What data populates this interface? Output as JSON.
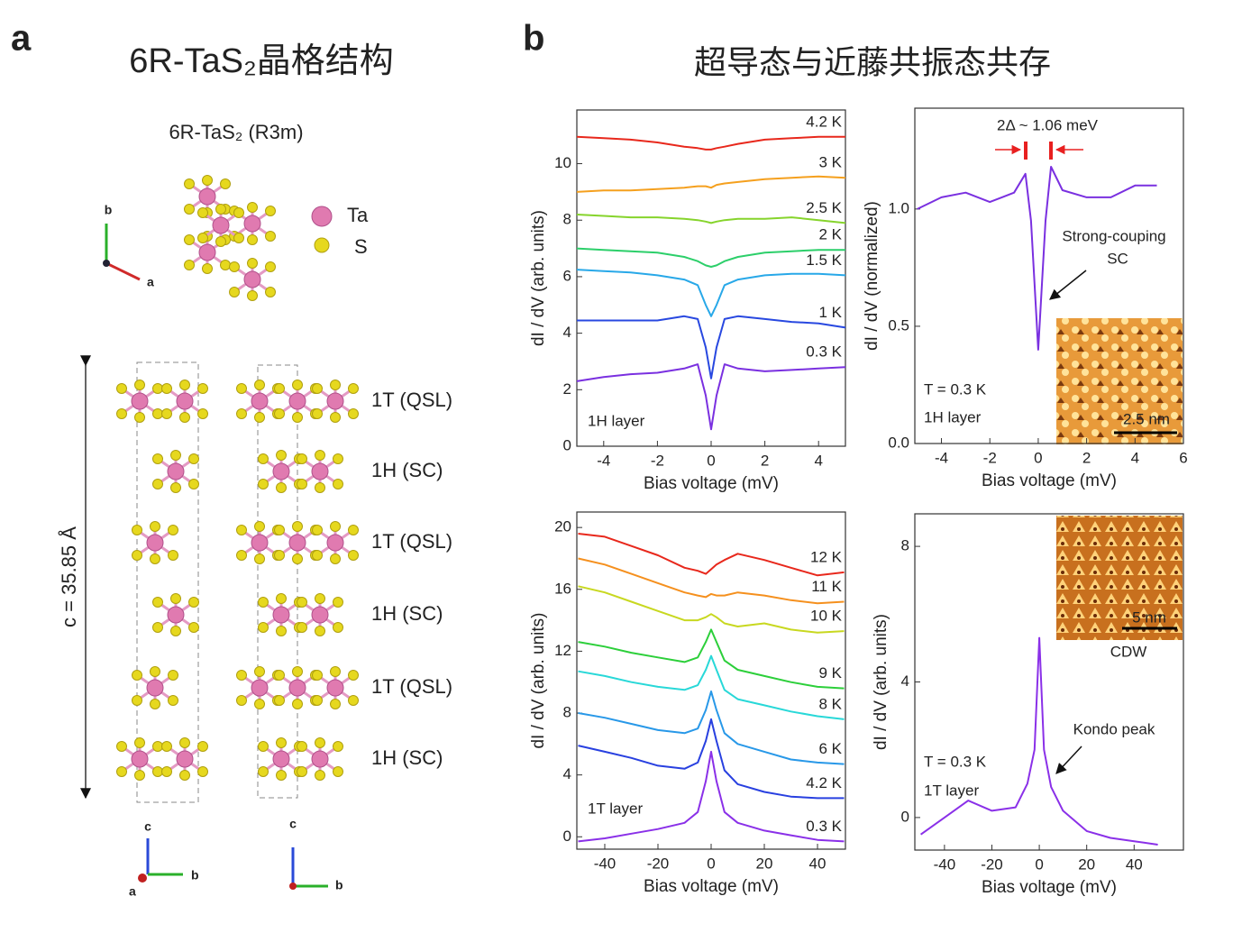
{
  "panel_a": {
    "label": "a",
    "title": "6R-TaS₂晶格结构",
    "structure": "6R-TaS₂ (R3m)",
    "legend": [
      "Ta",
      "S"
    ],
    "top_axes": [
      "b",
      "a"
    ],
    "layers": [
      "1T (QSL)",
      "1H (SC)",
      "1T (QSL)",
      "1H (SC)",
      "1T (QSL)",
      "1H (SC)"
    ],
    "lattice_c": "c = 35.85 Å",
    "side_axes_left": [
      "c",
      "a",
      "b"
    ],
    "side_axes_right": [
      "c",
      "b"
    ]
  },
  "panel_b": {
    "label": "b",
    "title": "超导态与近藤共振态共存"
  },
  "chart_data": [
    {
      "type": "line",
      "xlabel": "Bias voltage (mV)",
      "ylabel": "dI / dV (arb. units)",
      "x": [
        -5,
        -4,
        -3,
        -2,
        -1,
        -0.5,
        -0.2,
        0,
        0.2,
        0.5,
        1,
        2,
        3,
        4,
        5
      ],
      "xlim": [
        -5,
        5
      ],
      "xticks": [
        -4,
        -2,
        0,
        2,
        4
      ],
      "ylim": [
        0,
        11.9
      ],
      "yticks": [
        0,
        2,
        4,
        6,
        8,
        10
      ],
      "series": [
        {
          "name": "4.2 K",
          "color": "#e8281c",
          "values": [
            10.95,
            10.9,
            10.85,
            10.75,
            10.6,
            10.55,
            10.5,
            10.5,
            10.55,
            10.6,
            10.7,
            10.85,
            10.9,
            10.95,
            10.95
          ]
        },
        {
          "name": "3 K",
          "color": "#f5a01e",
          "values": [
            9.0,
            9.05,
            9.05,
            9.1,
            9.15,
            9.2,
            9.2,
            9.15,
            9.25,
            9.3,
            9.35,
            9.45,
            9.5,
            9.55,
            9.5
          ]
        },
        {
          "name": "2.5 K",
          "color": "#86d42c",
          "values": [
            8.2,
            8.15,
            8.1,
            8.1,
            8.05,
            8.0,
            7.95,
            7.9,
            7.95,
            8.0,
            8.05,
            8.05,
            8.1,
            8.0,
            7.9
          ]
        },
        {
          "name": "2 K",
          "color": "#2ccf6a",
          "values": [
            7.0,
            6.95,
            6.9,
            6.85,
            6.7,
            6.55,
            6.4,
            6.35,
            6.4,
            6.55,
            6.7,
            6.85,
            6.9,
            6.95,
            6.95
          ]
        },
        {
          "name": "1.5 K",
          "color": "#28a8e8",
          "values": [
            6.25,
            6.2,
            6.15,
            6.05,
            5.9,
            5.7,
            5.0,
            4.6,
            5.0,
            5.7,
            5.9,
            6.05,
            6.1,
            6.1,
            6.05
          ]
        },
        {
          "name": "1 K",
          "color": "#2848e0",
          "values": [
            4.45,
            4.45,
            4.45,
            4.45,
            4.6,
            4.5,
            3.5,
            2.4,
            3.5,
            4.5,
            4.6,
            4.5,
            4.4,
            4.35,
            4.2
          ]
        },
        {
          "name": "0.3 K",
          "color": "#7a30e0",
          "values": [
            2.3,
            2.45,
            2.55,
            2.6,
            2.75,
            2.9,
            1.8,
            0.6,
            1.8,
            2.9,
            2.75,
            2.65,
            2.7,
            2.75,
            2.8
          ]
        }
      ],
      "annotations": [
        "1H layer"
      ]
    },
    {
      "type": "line",
      "xlabel": "Bias voltage (mV)",
      "ylabel": "dI / dV (normalized)",
      "x": [
        -5,
        -4,
        -3,
        -2,
        -1.5,
        -1,
        -0.53,
        -0.3,
        0,
        0.3,
        0.53,
        1,
        2,
        3,
        4,
        4.9
      ],
      "xlim": [
        -5.1,
        6
      ],
      "xticks": [
        -4,
        -2,
        0,
        2,
        4,
        6
      ],
      "ylim": [
        0,
        1.43
      ],
      "yticks": [
        {
          "value": 0,
          "label": "0.0"
        },
        0.5,
        {
          "value": 1,
          "label": "1.0"
        }
      ],
      "series": [
        {
          "name": "T = 0.3 K",
          "color": "#7a30e0",
          "values": [
            1.0,
            1.05,
            1.07,
            1.03,
            1.05,
            1.07,
            1.15,
            0.95,
            0.4,
            0.95,
            1.18,
            1.08,
            1.05,
            1.05,
            1.1,
            1.1
          ]
        }
      ],
      "annotations": [
        "2Δ ~ 1.06 meV",
        "Strong-couping",
        "SC",
        "T = 0.3 K",
        "1H layer",
        "2.5 nm"
      ]
    },
    {
      "type": "line",
      "xlabel": "Bias voltage (mV)",
      "ylabel": "dI / dV (arb. units)",
      "x": [
        -50,
        -40,
        -30,
        -20,
        -10,
        -5,
        -2,
        0,
        2,
        5,
        10,
        20,
        30,
        40,
        50
      ],
      "xlim": [
        -50.5,
        50.5
      ],
      "xticks": [
        -40,
        -20,
        0,
        20,
        40
      ],
      "ylim": [
        -0.8,
        21
      ],
      "yticks": [
        0,
        4,
        8,
        12,
        16,
        20
      ],
      "series": [
        {
          "name": "12 K",
          "color": "#e8281c",
          "values": [
            19.6,
            19.4,
            18.8,
            18.2,
            17.4,
            17.2,
            17.0,
            17.3,
            17.6,
            17.9,
            18.3,
            17.9,
            17.4,
            16.9,
            17.1
          ]
        },
        {
          "name": "11 K",
          "color": "#f5901e",
          "values": [
            18.0,
            17.6,
            17.0,
            16.4,
            15.8,
            15.6,
            15.5,
            15.7,
            15.6,
            15.6,
            15.8,
            15.6,
            15.3,
            15.1,
            15.2
          ]
        },
        {
          "name": "10 K",
          "color": "#c8d820",
          "values": [
            16.2,
            15.8,
            15.2,
            14.6,
            14.0,
            14.0,
            14.2,
            14.4,
            14.2,
            13.8,
            13.6,
            13.8,
            13.4,
            13.2,
            13.3
          ]
        },
        {
          "name": "9 K",
          "color": "#2ccf3a",
          "values": [
            12.6,
            12.3,
            11.9,
            11.6,
            11.3,
            11.6,
            12.6,
            13.4,
            12.6,
            11.4,
            10.8,
            10.4,
            10.0,
            9.7,
            9.6
          ]
        },
        {
          "name": "8 K",
          "color": "#28d8d8",
          "values": [
            10.7,
            10.4,
            10.0,
            9.7,
            9.5,
            9.8,
            10.8,
            11.7,
            10.8,
            9.5,
            8.9,
            8.5,
            8.1,
            7.8,
            7.6
          ]
        },
        {
          "name": "6 K",
          "color": "#2898e8",
          "values": [
            8.0,
            7.7,
            7.3,
            6.9,
            6.7,
            7.0,
            8.2,
            9.4,
            8.2,
            6.7,
            6.0,
            5.5,
            5.0,
            4.8,
            4.7
          ]
        },
        {
          "name": "4.2 K",
          "color": "#2840e0",
          "values": [
            5.9,
            5.5,
            5.1,
            4.6,
            4.4,
            4.8,
            6.2,
            7.6,
            6.2,
            4.3,
            3.4,
            2.9,
            2.6,
            2.5,
            2.5
          ]
        },
        {
          "name": "0.3 K",
          "color": "#8a30e8",
          "values": [
            -0.3,
            -0.1,
            0.2,
            0.5,
            0.9,
            1.6,
            3.6,
            5.5,
            3.6,
            1.6,
            0.9,
            0.4,
            0.1,
            -0.2,
            -0.3
          ]
        }
      ],
      "annotations": [
        "1T layer"
      ]
    },
    {
      "type": "line",
      "xlabel": "Bias voltage (mV)",
      "ylabel": "dI / dV (arb. units)",
      "x": [
        -50,
        -40,
        -30,
        -20,
        -10,
        -5,
        -2,
        0,
        2,
        5,
        10,
        20,
        30,
        40,
        50
      ],
      "xlim": [
        -52.5,
        60.8
      ],
      "xticks": [
        -40,
        -20,
        0,
        20,
        40
      ],
      "ylim": [
        -0.96,
        8.96
      ],
      "yticks": [
        0,
        4,
        8
      ],
      "series": [
        {
          "name": "T = 0.3 K",
          "color": "#8a30e8",
          "values": [
            -0.5,
            0,
            0.5,
            0.2,
            0.3,
            1.0,
            2.0,
            5.3,
            2.0,
            0.9,
            0.2,
            -0.4,
            -0.6,
            -0.7,
            -0.8
          ]
        }
      ],
      "annotations": [
        "Kondo peak",
        "T = 0.3 K",
        "1T layer",
        "5 nm",
        "CDW"
      ]
    }
  ]
}
